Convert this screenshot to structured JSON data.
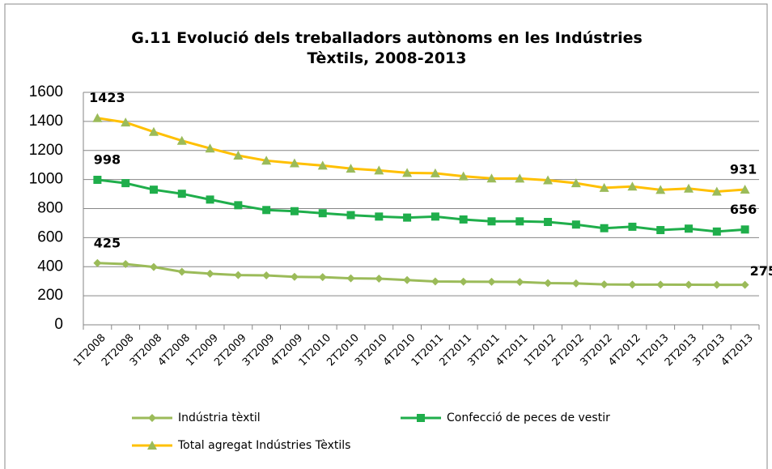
{
  "chart_data": {
    "type": "line",
    "title": "G.11 Evolució dels treballadors autònoms en les Indústries Tèxtils, 2008-2013",
    "categories": [
      "1T2008",
      "2T2008",
      "3T2008",
      "4T2008",
      "1T2009",
      "2T2009",
      "3T2009",
      "4T2009",
      "1T2010",
      "2T2010",
      "3T2010",
      "4T2010",
      "1T2011",
      "2T2011",
      "3T2011",
      "4T2011",
      "1T2012",
      "2T2012",
      "3T2012",
      "4T2012",
      "1T2013",
      "2T2013",
      "3T2013",
      "4T2013"
    ],
    "series": [
      {
        "name": "Indústria tèxtil",
        "color": "#9bbb59",
        "marker": "diamond",
        "marker_color": "#9bbb59",
        "values": [
          425,
          418,
          398,
          365,
          352,
          342,
          340,
          330,
          328,
          320,
          318,
          308,
          298,
          297,
          296,
          295,
          287,
          285,
          278,
          277,
          277,
          276,
          275,
          275
        ]
      },
      {
        "name": "Confecció de peces de vestir",
        "color": "#1fae4b",
        "marker": "square",
        "marker_color": "#1fae4b",
        "values": [
          998,
          975,
          930,
          902,
          862,
          823,
          790,
          782,
          768,
          755,
          745,
          738,
          745,
          725,
          712,
          712,
          708,
          690,
          665,
          675,
          652,
          662,
          642,
          656
        ]
      },
      {
        "name": "Total agregat Indústries Tèxtils",
        "color": "#ffc000",
        "marker": "triangle",
        "marker_color": "#9bbb59",
        "values": [
          1423,
          1393,
          1328,
          1267,
          1214,
          1165,
          1130,
          1112,
          1096,
          1075,
          1063,
          1046,
          1043,
          1022,
          1008,
          1007,
          995,
          975,
          943,
          952,
          929,
          938,
          917,
          931
        ]
      }
    ],
    "ylim": [
      0,
      1600
    ],
    "yticks": [
      0,
      200,
      400,
      600,
      800,
      1000,
      1200,
      1400,
      1600
    ],
    "grid": true
  }
}
